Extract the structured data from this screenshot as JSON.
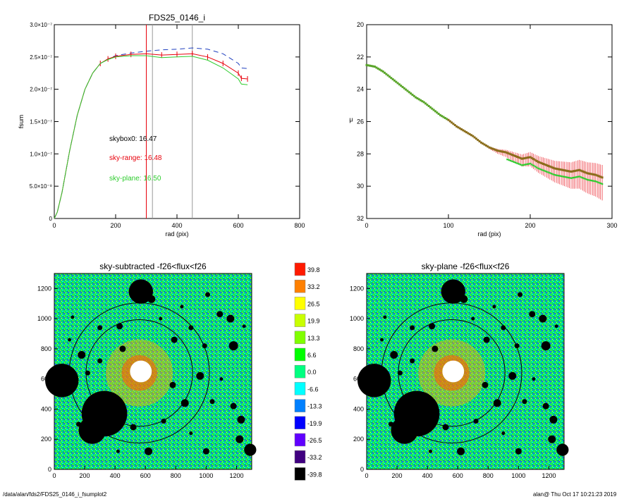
{
  "footer": {
    "path": "/data/alan/fds2/FDS25_0146_i_fsumplot2",
    "user_time": "alan@  Thu Oct 17 10:21:23 2019"
  },
  "chart_data": [
    {
      "type": "line",
      "title": "FDS25_0146_i",
      "xlabel": "rad (pix)",
      "ylabel": "fsum",
      "xlim": [
        0,
        800
      ],
      "ylim": [
        0,
        3e-07
      ],
      "xticks": [
        "0",
        "200",
        "400",
        "600",
        "800"
      ],
      "yticks": [
        {
          "v": 0,
          "label": "0"
        },
        {
          "v": 5e-08,
          "label": "5.0×10⁻⁸"
        },
        {
          "v": 1e-07,
          "label": "1.0×10⁻⁷"
        },
        {
          "v": 1.5e-07,
          "label": "1.5×10⁻⁷"
        },
        {
          "v": 2e-07,
          "label": "2.0×10⁻⁷"
        },
        {
          "v": 2.5e-07,
          "label": "2.5×10⁻⁷"
        },
        {
          "v": 3e-07,
          "label": "3.0×10⁻⁷"
        }
      ],
      "series": [
        {
          "style": "dashed",
          "color": "#1f3fbf",
          "x": [
            0,
            10,
            25,
            50,
            75,
            100,
            125,
            150,
            175,
            200,
            250,
            300,
            350,
            400,
            450,
            500,
            550,
            600,
            610,
            630
          ],
          "y": [
            0,
            1e-08,
            4e-08,
            1.05e-07,
            1.6e-07,
            2e-07,
            2.25e-07,
            2.4e-07,
            2.47e-07,
            2.52e-07,
            2.56e-07,
            2.59e-07,
            2.61e-07,
            2.62e-07,
            2.64e-07,
            2.62e-07,
            2.55e-07,
            2.4e-07,
            2.33e-07,
            2.32e-07
          ]
        },
        {
          "style": "errorbar",
          "color": "#e8000b",
          "x": [
            0,
            10,
            25,
            50,
            75,
            100,
            125,
            150,
            175,
            200,
            250,
            300,
            350,
            400,
            450,
            500,
            550,
            600,
            610,
            630
          ],
          "y": [
            0,
            1e-08,
            4e-08,
            1.05e-07,
            1.6e-07,
            2e-07,
            2.25e-07,
            2.4e-07,
            2.47e-07,
            2.51e-07,
            2.54e-07,
            2.55e-07,
            2.53e-07,
            2.54e-07,
            2.55e-07,
            2.5e-07,
            2.4e-07,
            2.25e-07,
            2.17e-07,
            2.16e-07
          ]
        },
        {
          "style": "solid",
          "color": "#2ecc2e",
          "x": [
            0,
            10,
            25,
            50,
            75,
            100,
            125,
            150,
            175,
            200,
            250,
            300,
            350,
            400,
            450,
            500,
            550,
            600,
            610,
            630
          ],
          "y": [
            0,
            1e-08,
            4e-08,
            1.05e-07,
            1.6e-07,
            2e-07,
            2.25e-07,
            2.4e-07,
            2.46e-07,
            2.5e-07,
            2.52e-07,
            2.52e-07,
            2.49e-07,
            2.5e-07,
            2.51e-07,
            2.45e-07,
            2.33e-07,
            2.16e-07,
            2.08e-07,
            2.07e-07
          ]
        }
      ],
      "vlines": [
        {
          "x": 300,
          "color": "#e8000b"
        },
        {
          "x": 320,
          "color": "#999999"
        },
        {
          "x": 450,
          "color": "#999999"
        }
      ],
      "annotations": [
        {
          "text": "skybox0: 16.47",
          "color": "#000000"
        },
        {
          "text": "sky-range: 16.48",
          "color": "#e8000b"
        },
        {
          "text": "sky-plane: 16.50",
          "color": "#2ecc2e"
        }
      ]
    },
    {
      "type": "scatter",
      "title": "",
      "xlabel": "rad (pix)",
      "ylabel": "μ",
      "xlim": [
        0,
        300
      ],
      "ylim": [
        20,
        32
      ],
      "y_inverted": true,
      "xticks": [
        "0",
        "100",
        "200",
        "300"
      ],
      "yticks": [
        "20",
        "22",
        "24",
        "26",
        "28",
        "30",
        "32"
      ],
      "series": [
        {
          "color": "#8a6d1a",
          "name": "",
          "x": [
            0,
            10,
            20,
            30,
            40,
            50,
            60,
            70,
            80,
            90,
            100,
            110,
            120,
            130,
            140,
            150,
            160,
            170,
            180,
            190,
            200,
            210,
            220,
            230,
            240,
            250,
            260,
            270,
            280,
            290
          ],
          "y": [
            22.5,
            22.6,
            22.9,
            23.3,
            23.7,
            24.1,
            24.5,
            24.8,
            25.2,
            25.6,
            25.9,
            26.3,
            26.6,
            26.9,
            27.3,
            27.6,
            27.8,
            27.9,
            28.1,
            28.3,
            28.2,
            28.5,
            28.7,
            28.9,
            29.0,
            29.1,
            29.0,
            29.2,
            29.3,
            29.5
          ]
        }
      ]
    },
    {
      "type": "heatmap",
      "title": "sky-subtracted -f26<flux<f26",
      "xlim": [
        0,
        1300
      ],
      "ylim": [
        0,
        1300
      ],
      "xticks": [
        "0",
        "200",
        "400",
        "600",
        "800",
        "1000",
        "1200"
      ],
      "yticks": [
        "0",
        "200",
        "400",
        "600",
        "800",
        "1000",
        "1200"
      ]
    },
    {
      "type": "heatmap",
      "title": "sky-plane -f26<flux<f26",
      "xlim": [
        0,
        1300
      ],
      "ylim": [
        0,
        1300
      ],
      "xticks": [
        "0",
        "200",
        "400",
        "600",
        "800",
        "1000",
        "1200"
      ],
      "yticks": [
        "0",
        "200",
        "400",
        "600",
        "800",
        "1000",
        "1200"
      ]
    }
  ],
  "colorbar": {
    "labels": [
      "39.8",
      "33.2",
      "26.5",
      "19.9",
      "13.3",
      "6.6",
      "0.0",
      "-6.6",
      "-13.3",
      "-19.9",
      "-26.5",
      "-33.2",
      "-39.8"
    ],
    "colors": [
      "#ff1a00",
      "#ff8000",
      "#ffff00",
      "#c8ff00",
      "#80ff00",
      "#00ff00",
      "#00ff80",
      "#00ffff",
      "#0080ff",
      "#0000ff",
      "#6000ff",
      "#400080",
      "#000000"
    ]
  }
}
